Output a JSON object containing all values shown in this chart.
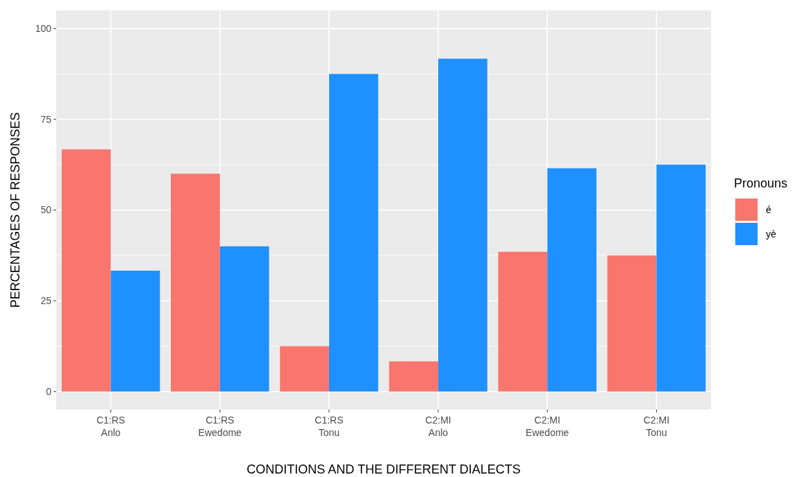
{
  "chart_data": {
    "type": "bar",
    "xlabel": "CONDITIONS AND THE DIFFERENT DIALECTS",
    "ylabel": "PERCENTAGES OF RESPONSES",
    "legend_title": "Pronouns",
    "categories": [
      "C1:RS\nAnlo",
      "C1:RS\nEwedome",
      "C1:RS\nTonu",
      "C2:MI\nAnlo",
      "C2:MI\nEwedome",
      "C2:MI\nTonu"
    ],
    "series": [
      {
        "name": "é",
        "color": "#f8766d",
        "values": [
          66.7,
          60,
          12.5,
          8.3,
          38.5,
          37.5
        ]
      },
      {
        "name": "yè",
        "color": "#1e90ff",
        "values": [
          33.3,
          40,
          87.5,
          91.7,
          61.5,
          62.5
        ]
      }
    ],
    "ylim": [
      -5,
      105
    ],
    "yticks": [
      0,
      25,
      50,
      75,
      100
    ],
    "grid": true,
    "legend": "right"
  }
}
